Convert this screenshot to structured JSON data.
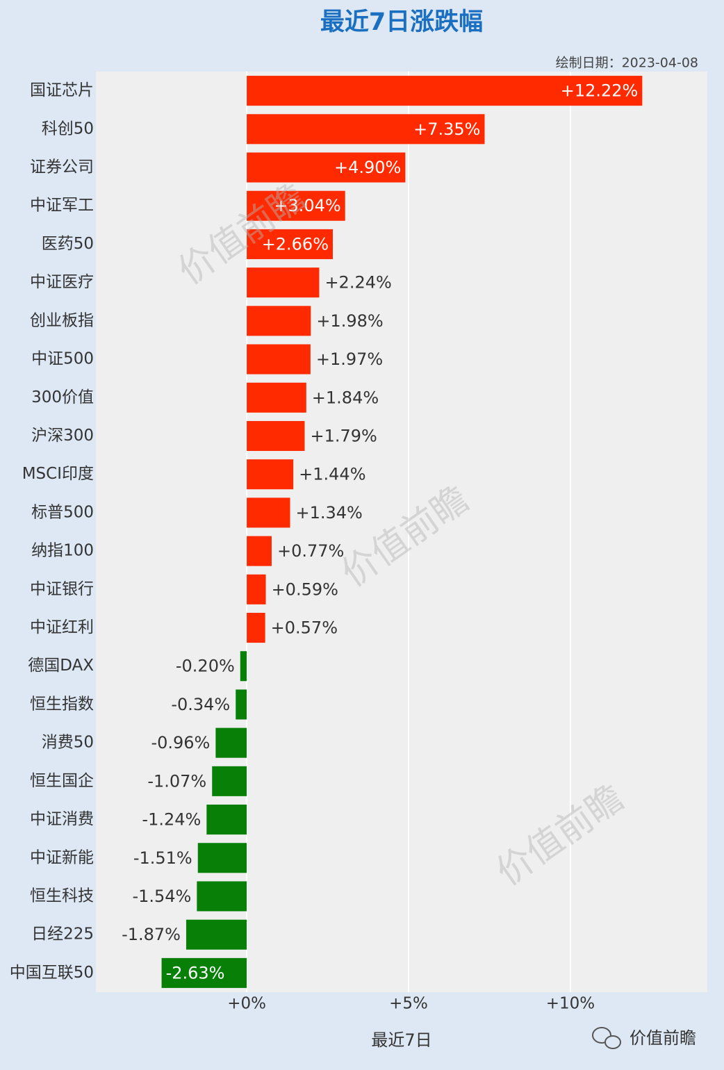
{
  "chart_data": {
    "type": "bar",
    "orientation": "horizontal",
    "title": "最近7日涨跌幅",
    "subtitle": "绘制日期：2023-04-08",
    "x_label": "最近7日",
    "watermark": "价值前瞻",
    "brand": "价值前瞻",
    "categories": [
      "国证芯片",
      "科创50",
      "证券公司",
      "中证军工",
      "医药50",
      "中证医疗",
      "创业板指",
      "中证500",
      "300价值",
      "沪深300",
      "MSCI印度",
      "标普500",
      "纳指100",
      "中证银行",
      "中证红利",
      "德国DAX",
      "恒生指数",
      "消费50",
      "恒生国企",
      "中证消费",
      "中证新能",
      "恒生科技",
      "日经225",
      "中国互联50"
    ],
    "values": [
      12.22,
      7.35,
      4.9,
      3.04,
      2.66,
      2.24,
      1.98,
      1.97,
      1.84,
      1.79,
      1.44,
      1.34,
      0.77,
      0.59,
      0.57,
      -0.2,
      -0.34,
      -0.96,
      -1.07,
      -1.24,
      -1.51,
      -1.54,
      -1.87,
      -2.63
    ],
    "value_labels": [
      "+12.22%",
      "+7.35%",
      "+4.90%",
      "+3.04%",
      "+2.66%",
      "+2.24%",
      "+1.98%",
      "+1.97%",
      "+1.84%",
      "+1.79%",
      "+1.44%",
      "+1.34%",
      "+0.77%",
      "+0.59%",
      "+0.57%",
      "-0.20%",
      "-0.34%",
      "-0.96%",
      "-1.07%",
      "-1.24%",
      "-1.51%",
      "-1.54%",
      "-1.87%",
      "-2.63%"
    ],
    "colors": {
      "positive": "#ff2a00",
      "negative": "#088008"
    },
    "xlim": [
      -4.66,
      14.23
    ],
    "xticks": [
      {
        "value": 0,
        "label": "+0%"
      },
      {
        "value": 5,
        "label": "+5%"
      },
      {
        "value": 10,
        "label": "+10%"
      }
    ],
    "grid": true
  }
}
